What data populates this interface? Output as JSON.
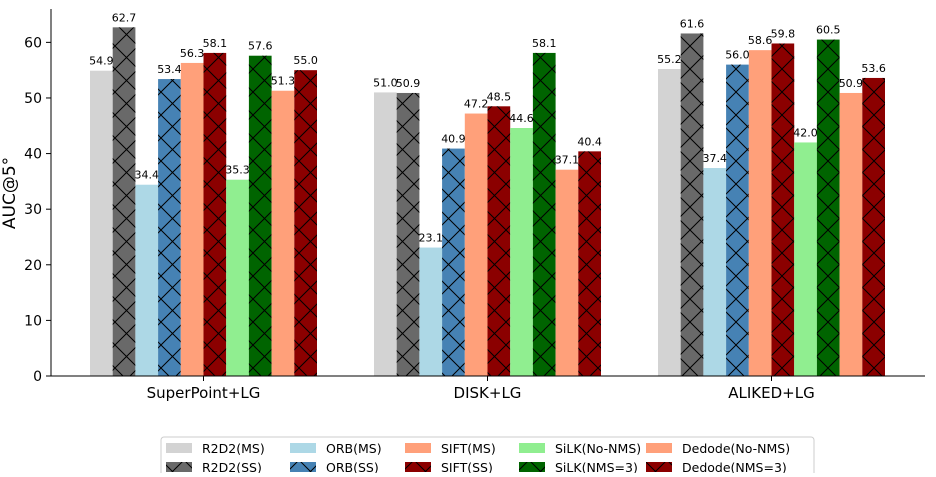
{
  "chart_data": {
    "type": "bar",
    "title": "",
    "xlabel": "",
    "ylabel": "AUC@5°",
    "ylim": [
      0,
      66
    ],
    "yticks": [
      0,
      10,
      20,
      30,
      40,
      50,
      60
    ],
    "grid": false,
    "legend_position": "bottom-center",
    "categories": [
      "SuperPoint+LG",
      "DISK+LG",
      "ALIKED+LG"
    ],
    "series": [
      {
        "name": "R2D2(MS)",
        "color": "#d3d3d3",
        "hatch": false,
        "values": [
          54.9,
          51.0,
          55.2
        ]
      },
      {
        "name": "R2D2(SS)",
        "color": "#696969",
        "hatch": true,
        "values": [
          62.7,
          50.9,
          61.6
        ]
      },
      {
        "name": "ORB(MS)",
        "color": "#add8e6",
        "hatch": false,
        "values": [
          34.4,
          23.1,
          37.4
        ]
      },
      {
        "name": "ORB(SS)",
        "color": "#4682b4",
        "hatch": true,
        "values": [
          53.4,
          40.9,
          56.0
        ]
      },
      {
        "name": "SIFT(MS)",
        "color": "#ffa07a",
        "hatch": false,
        "values": [
          56.3,
          47.2,
          58.6
        ]
      },
      {
        "name": "SIFT(SS)",
        "color": "#8b0000",
        "hatch": true,
        "values": [
          58.1,
          48.5,
          59.8
        ]
      },
      {
        "name": "SiLK(No-NMS)",
        "color": "#90ee90",
        "hatch": false,
        "values": [
          35.3,
          44.6,
          42.0
        ]
      },
      {
        "name": "SiLK(NMS=3)",
        "color": "#006400",
        "hatch": true,
        "values": [
          57.6,
          58.1,
          60.5
        ]
      },
      {
        "name": "Dedode(No-NMS)",
        "color": "#ffa07a",
        "hatch": false,
        "values": [
          51.3,
          37.1,
          50.9
        ]
      },
      {
        "name": "Dedode(NMS=3)",
        "color": "#8b0000",
        "hatch": true,
        "values": [
          55.0,
          40.4,
          53.6
        ]
      }
    ]
  }
}
